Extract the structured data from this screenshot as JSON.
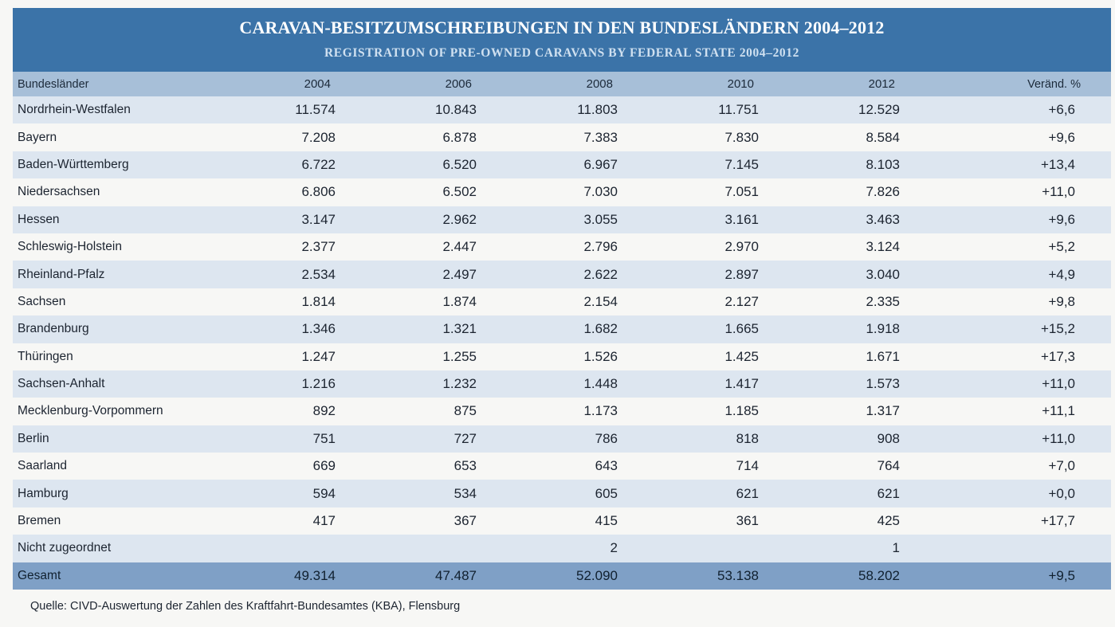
{
  "header": {
    "title": "CARAVAN-BESITZUMSCHREIBUNGEN IN DEN BUNDESLÄNDERN 2004–2012",
    "subtitle": "REGISTRATION OF PRE-OWNED CARAVANS BY FEDERAL STATE 2004–2012"
  },
  "columns": [
    "Bundesländer",
    "2004",
    "2006",
    "2008",
    "2010",
    "2012",
    "Veränd. %"
  ],
  "rows": [
    [
      "Nordrhein-Westfalen",
      "11.574",
      "10.843",
      "11.803",
      "11.751",
      "12.529",
      "+6,6"
    ],
    [
      "Bayern",
      "7.208",
      "6.878",
      "7.383",
      "7.830",
      "8.584",
      "+9,6"
    ],
    [
      "Baden-Württemberg",
      "6.722",
      "6.520",
      "6.967",
      "7.145",
      "8.103",
      "+13,4"
    ],
    [
      "Niedersachsen",
      "6.806",
      "6.502",
      "7.030",
      "7.051",
      "7.826",
      "+11,0"
    ],
    [
      "Hessen",
      "3.147",
      "2.962",
      "3.055",
      "3.161",
      "3.463",
      "+9,6"
    ],
    [
      "Schleswig-Holstein",
      "2.377",
      "2.447",
      "2.796",
      "2.970",
      "3.124",
      "+5,2"
    ],
    [
      "Rheinland-Pfalz",
      "2.534",
      "2.497",
      "2.622",
      "2.897",
      "3.040",
      "+4,9"
    ],
    [
      "Sachsen",
      "1.814",
      "1.874",
      "2.154",
      "2.127",
      "2.335",
      "+9,8"
    ],
    [
      "Brandenburg",
      "1.346",
      "1.321",
      "1.682",
      "1.665",
      "1.918",
      "+15,2"
    ],
    [
      "Thüringen",
      "1.247",
      "1.255",
      "1.526",
      "1.425",
      "1.671",
      "+17,3"
    ],
    [
      "Sachsen-Anhalt",
      "1.216",
      "1.232",
      "1.448",
      "1.417",
      "1.573",
      "+11,0"
    ],
    [
      "Mecklenburg-Vorpommern",
      "892",
      "875",
      "1.173",
      "1.185",
      "1.317",
      "+11,1"
    ],
    [
      "Berlin",
      "751",
      "727",
      "786",
      "818",
      "908",
      "+11,0"
    ],
    [
      "Saarland",
      "669",
      "653",
      "643",
      "714",
      "764",
      "+7,0"
    ],
    [
      "Hamburg",
      "594",
      "534",
      "605",
      "621",
      "621",
      "+0,0"
    ],
    [
      "Bremen",
      "417",
      "367",
      "415",
      "361",
      "425",
      "+17,7"
    ],
    [
      "Nicht zugeordnet",
      "",
      "",
      "2",
      "",
      "1",
      ""
    ]
  ],
  "total": [
    "Gesamt",
    "49.314",
    "47.487",
    "52.090",
    "53.138",
    "58.202",
    "+9,5"
  ],
  "source": "Quelle: CIVD-Auswertung der Zahlen des Kraftfahrt-Bundesamtes (KBA), Flensburg",
  "colors": {
    "banner": "#3b73a8",
    "header_row": "#a7bfd8",
    "shaded_row": "#dde6f0",
    "total_row": "#7fa0c6"
  }
}
